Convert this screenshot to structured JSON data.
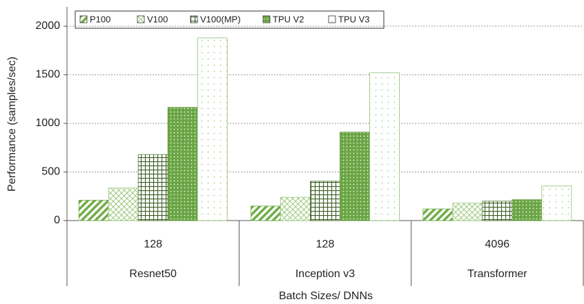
{
  "chart_data": {
    "type": "bar",
    "y_label": "Performance (samples/sec)",
    "x_label": "Batch Sizes/ DNNs",
    "categories": [
      "128",
      "128",
      "4096"
    ],
    "category_groups": [
      "Resnet50",
      "Inception v3",
      "Transformer"
    ],
    "series": [
      {
        "name": "P100",
        "color": "#70ad47",
        "pattern": "diagonal",
        "values": [
          210,
          150,
          120
        ]
      },
      {
        "name": "V100",
        "color": "#9dc97e",
        "pattern": "crosshatch",
        "values": [
          335,
          240,
          180
        ]
      },
      {
        "name": "V100(MP)",
        "color": "#4f7a30",
        "pattern": "grid",
        "values": [
          680,
          405,
          200
        ]
      },
      {
        "name": "TPU V2",
        "color": "#5e9a3a",
        "pattern": "checker",
        "values": [
          1165,
          910,
          215
        ]
      },
      {
        "name": "TPU V3",
        "color": "#8fbf6f",
        "pattern": "dots",
        "values": [
          1880,
          1520,
          355
        ]
      }
    ],
    "ylim": [
      0,
      2000
    ],
    "yticks": [
      0,
      500,
      1000,
      1500,
      2000
    ],
    "grid": true
  }
}
